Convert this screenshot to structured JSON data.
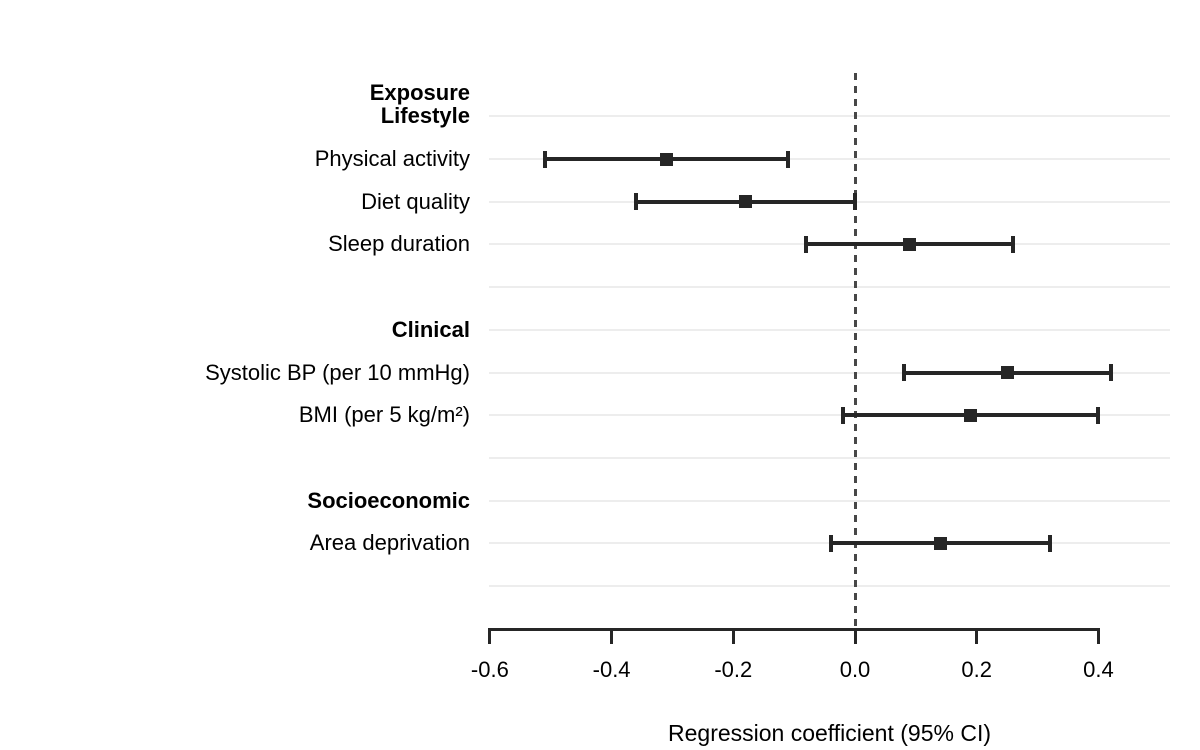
{
  "chart_data": {
    "type": "scatter",
    "subtype": "forest-plot",
    "title": "",
    "xlabel": "Regression coefficient (95% CI)",
    "ylabel": "",
    "header_label": "Exposure",
    "xlim": [
      -0.6,
      0.52
    ],
    "x_ticks": [
      {
        "value": -0.6,
        "label": "-0.6"
      },
      {
        "value": -0.4,
        "label": "-0.4"
      },
      {
        "value": -0.2,
        "label": "-0.2"
      },
      {
        "value": 0.0,
        "label": "0.0"
      },
      {
        "value": 0.2,
        "label": "0.2"
      },
      {
        "value": 0.4,
        "label": "0.4"
      }
    ],
    "reference_line_x": 0.0,
    "grid": "horizontal row gridlines only",
    "legend": "none",
    "rows": [
      {
        "kind": "group",
        "label": "Lifestyle"
      },
      {
        "kind": "item",
        "label": "Physical activity",
        "estimate": -0.31,
        "ci_low": -0.51,
        "ci_high": -0.11
      },
      {
        "kind": "item",
        "label": "Diet quality",
        "estimate": -0.18,
        "ci_low": -0.36,
        "ci_high": 0.0
      },
      {
        "kind": "item",
        "label": "Sleep duration",
        "estimate": 0.09,
        "ci_low": -0.08,
        "ci_high": 0.26
      },
      {
        "kind": "spacer",
        "label": ""
      },
      {
        "kind": "group",
        "label": "Clinical"
      },
      {
        "kind": "item",
        "label": "Systolic BP (per 10 mmHg)",
        "estimate": 0.25,
        "ci_low": 0.08,
        "ci_high": 0.42
      },
      {
        "kind": "item",
        "label": "BMI (per 5 kg/m²)",
        "estimate": 0.19,
        "ci_low": -0.02,
        "ci_high": 0.4
      },
      {
        "kind": "spacer",
        "label": ""
      },
      {
        "kind": "group",
        "label": "Socioeconomic"
      },
      {
        "kind": "item",
        "label": "Area deprivation",
        "estimate": 0.14,
        "ci_low": -0.04,
        "ci_high": 0.32
      },
      {
        "kind": "spacer",
        "label": ""
      }
    ],
    "colors": {
      "marker": "#262626",
      "ci_line": "#262626",
      "gridline": "#ededed",
      "reference_line": "#474747",
      "axis": "#262626",
      "text": "#000000",
      "background": "#ffffff"
    }
  }
}
